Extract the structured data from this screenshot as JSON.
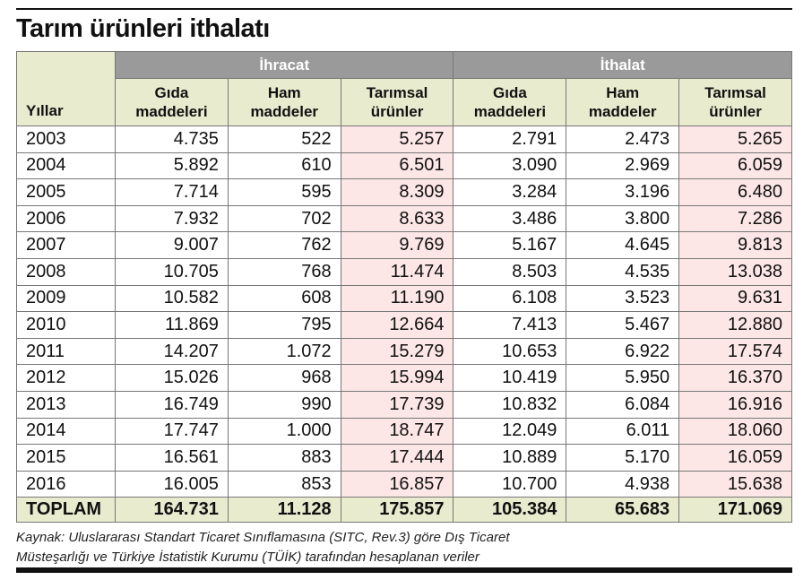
{
  "title": "Tarım ürünleri ithalatı",
  "table": {
    "year_header": "Yıllar",
    "groups": [
      "İhracat",
      "İthalat"
    ],
    "columns": [
      "Gıda maddeleri",
      "Ham maddeler",
      "Tarımsal ürünler",
      "Gıda maddeleri",
      "Ham maddeler",
      "Tarımsal ürünler"
    ],
    "rows": [
      [
        "2003",
        "4.735",
        "522",
        "5.257",
        "2.791",
        "2.473",
        "5.265"
      ],
      [
        "2004",
        "5.892",
        "610",
        "6.501",
        "3.090",
        "2.969",
        "6.059"
      ],
      [
        "2005",
        "7.714",
        "595",
        "8.309",
        "3.284",
        "3.196",
        "6.480"
      ],
      [
        "2006",
        "7.932",
        "702",
        "8.633",
        "3.486",
        "3.800",
        "7.286"
      ],
      [
        "2007",
        "9.007",
        "762",
        "9.769",
        "5.167",
        "4.645",
        "9.813"
      ],
      [
        "2008",
        "10.705",
        "768",
        "11.474",
        "8.503",
        "4.535",
        "13.038"
      ],
      [
        "2009",
        "10.582",
        "608",
        "11.190",
        "6.108",
        "3.523",
        "9.631"
      ],
      [
        "2010",
        "11.869",
        "795",
        "12.664",
        "7.413",
        "5.467",
        "12.880"
      ],
      [
        "2011",
        "14.207",
        "1.072",
        "15.279",
        "10.653",
        "6.922",
        "17.574"
      ],
      [
        "2012",
        "15.026",
        "968",
        "15.994",
        "10.419",
        "5.950",
        "16.370"
      ],
      [
        "2013",
        "16.749",
        "990",
        "17.739",
        "10.832",
        "6.084",
        "16.916"
      ],
      [
        "2014",
        "17.747",
        "1.000",
        "18.747",
        "12.049",
        "6.011",
        "18.060"
      ],
      [
        "2015",
        "16.561",
        "883",
        "17.444",
        "10.889",
        "5.170",
        "16.059"
      ],
      [
        "2016",
        "16.005",
        "853",
        "16.857",
        "10.700",
        "4.938",
        "15.638"
      ]
    ],
    "total": [
      "TOPLAM",
      "164.731",
      "11.128",
      "175.857",
      "105.384",
      "65.683",
      "171.069"
    ]
  },
  "source": [
    "Kaynak: Uluslararası Standart Ticaret Sınıflamasına (SITC, Rev.3) göre Dış Ticaret",
    "Müsteşarlığı ve Türkiye İstatistik Kurumu (TÜİK) tarafından hesaplanan veriler"
  ]
}
